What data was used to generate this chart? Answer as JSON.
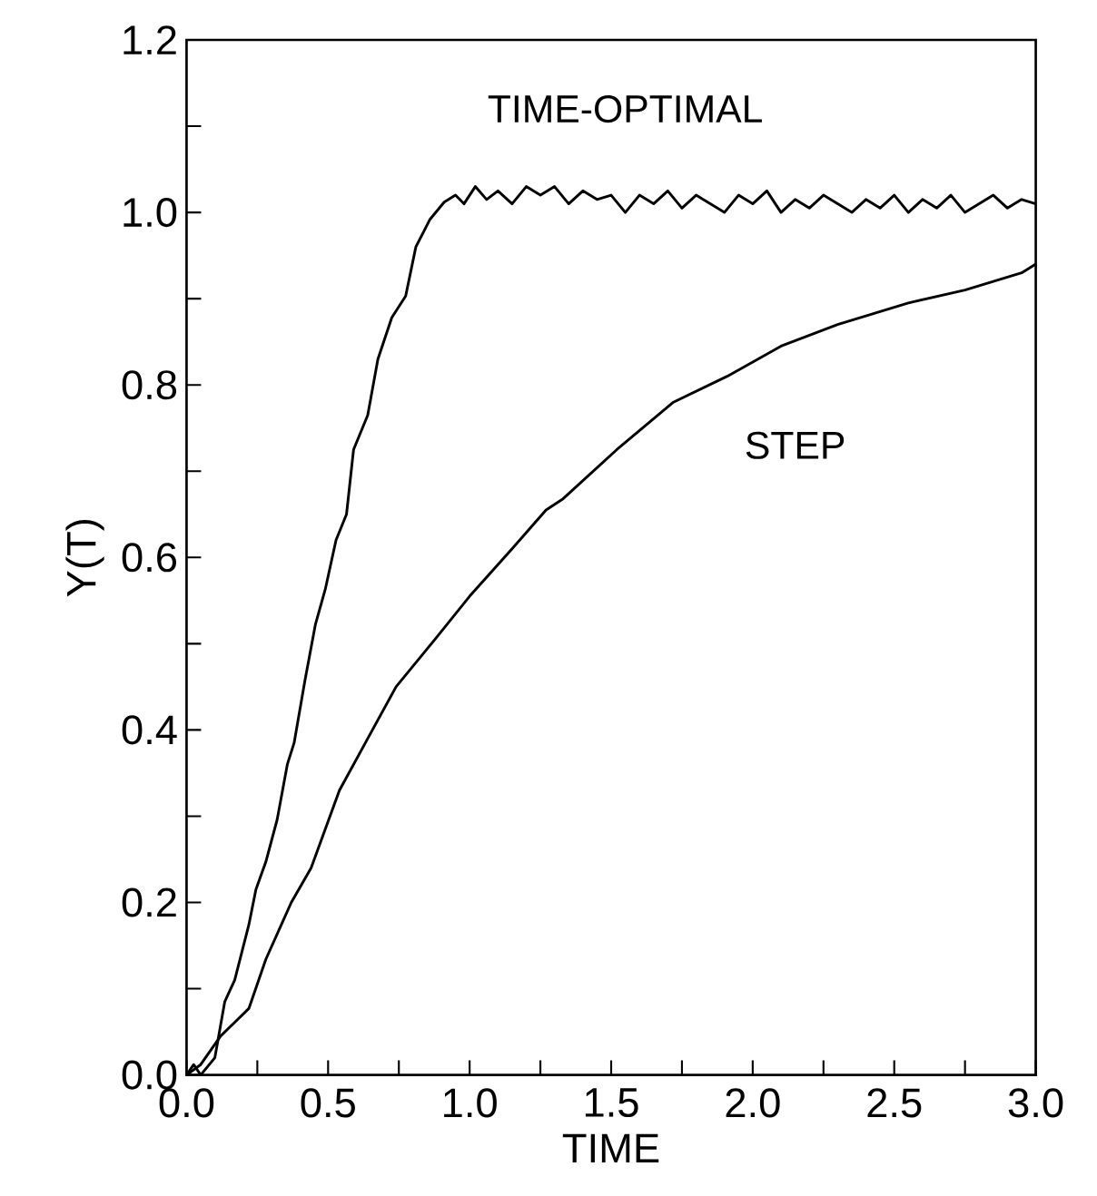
{
  "chart_data": {
    "type": "line",
    "xlabel": "TIME",
    "ylabel": "Y(T)",
    "xlim": [
      0,
      3
    ],
    "ylim": [
      0,
      1.2
    ],
    "xticks": [
      {
        "value": 0,
        "label": "0.0"
      },
      {
        "value": 0.25,
        "label": null
      },
      {
        "value": 0.5,
        "label": "0.5"
      },
      {
        "value": 0.75,
        "label": null
      },
      {
        "value": 1,
        "label": "1.0"
      },
      {
        "value": 1.25,
        "label": null
      },
      {
        "value": 1.5,
        "label": "1.5"
      },
      {
        "value": 1.75,
        "label": null
      },
      {
        "value": 2,
        "label": "2.0"
      },
      {
        "value": 2.25,
        "label": null
      },
      {
        "value": 2.5,
        "label": "2.5"
      },
      {
        "value": 2.75,
        "label": null
      },
      {
        "value": 3,
        "label": "3.0"
      }
    ],
    "yticks": [
      {
        "value": 0,
        "label": "0.0"
      },
      {
        "value": 0.1,
        "label": null
      },
      {
        "value": 0.2,
        "label": "0.2"
      },
      {
        "value": 0.3,
        "label": null
      },
      {
        "value": 0.4,
        "label": "0.4"
      },
      {
        "value": 0.5,
        "label": null
      },
      {
        "value": 0.6,
        "label": "0.6"
      },
      {
        "value": 0.7,
        "label": null
      },
      {
        "value": 0.8,
        "label": "0.8"
      },
      {
        "value": 0.9,
        "label": null
      },
      {
        "value": 1.0,
        "label": "1.0"
      },
      {
        "value": 1.1,
        "label": null
      },
      {
        "value": 1.2,
        "label": "1.2"
      }
    ],
    "grid": false,
    "legend": false,
    "marker": "none",
    "line_style": "solid",
    "series": [
      {
        "name": "TIME-OPTIMAL",
        "color": "#000000",
        "x": [
          0.0,
          0.025,
          0.05,
          0.1,
          0.135,
          0.17,
          0.22,
          0.245,
          0.28,
          0.32,
          0.356,
          0.38,
          0.418,
          0.455,
          0.49,
          0.528,
          0.565,
          0.59,
          0.64,
          0.676,
          0.725,
          0.774,
          0.81,
          0.86,
          0.91,
          0.95,
          0.98,
          1.02,
          1.06,
          1.1,
          1.15,
          1.2,
          1.25,
          1.3,
          1.35,
          1.4,
          1.45,
          1.5,
          1.55,
          1.6,
          1.65,
          1.7,
          1.75,
          1.8,
          1.85,
          1.9,
          1.95,
          2.0,
          2.05,
          2.1,
          2.15,
          2.2,
          2.25,
          2.3,
          2.35,
          2.4,
          2.45,
          2.5,
          2.55,
          2.6,
          2.65,
          2.7,
          2.75,
          2.8,
          2.85,
          2.9,
          2.95,
          3.0
        ],
        "values": [
          0.0,
          0.012,
          0.0,
          0.02,
          0.085,
          0.11,
          0.174,
          0.215,
          0.247,
          0.296,
          0.36,
          0.385,
          0.457,
          0.522,
          0.563,
          0.62,
          0.65,
          0.725,
          0.765,
          0.83,
          0.878,
          0.903,
          0.96,
          0.992,
          1.012,
          1.02,
          1.01,
          1.03,
          1.015,
          1.025,
          1.01,
          1.03,
          1.02,
          1.03,
          1.01,
          1.025,
          1.015,
          1.02,
          1.0,
          1.02,
          1.01,
          1.025,
          1.005,
          1.02,
          1.01,
          1.0,
          1.02,
          1.01,
          1.025,
          1.0,
          1.015,
          1.005,
          1.02,
          1.01,
          1.0,
          1.015,
          1.005,
          1.02,
          1.0,
          1.015,
          1.005,
          1.02,
          1.0,
          1.01,
          1.02,
          1.005,
          1.015,
          1.01
        ]
      },
      {
        "name": "STEP",
        "color": "#000000",
        "x": [
          0.0,
          0.05,
          0.12,
          0.22,
          0.28,
          0.37,
          0.44,
          0.54,
          0.64,
          0.74,
          0.88,
          1.0,
          1.15,
          1.27,
          1.33,
          1.52,
          1.72,
          1.91,
          2.1,
          2.3,
          2.55,
          2.75,
          2.95,
          3.0
        ],
        "values": [
          0.0,
          0.012,
          0.045,
          0.077,
          0.134,
          0.2,
          0.24,
          0.33,
          0.39,
          0.45,
          0.506,
          0.555,
          0.61,
          0.655,
          0.668,
          0.725,
          0.78,
          0.81,
          0.845,
          0.87,
          0.895,
          0.91,
          0.93,
          0.94
        ]
      }
    ]
  }
}
